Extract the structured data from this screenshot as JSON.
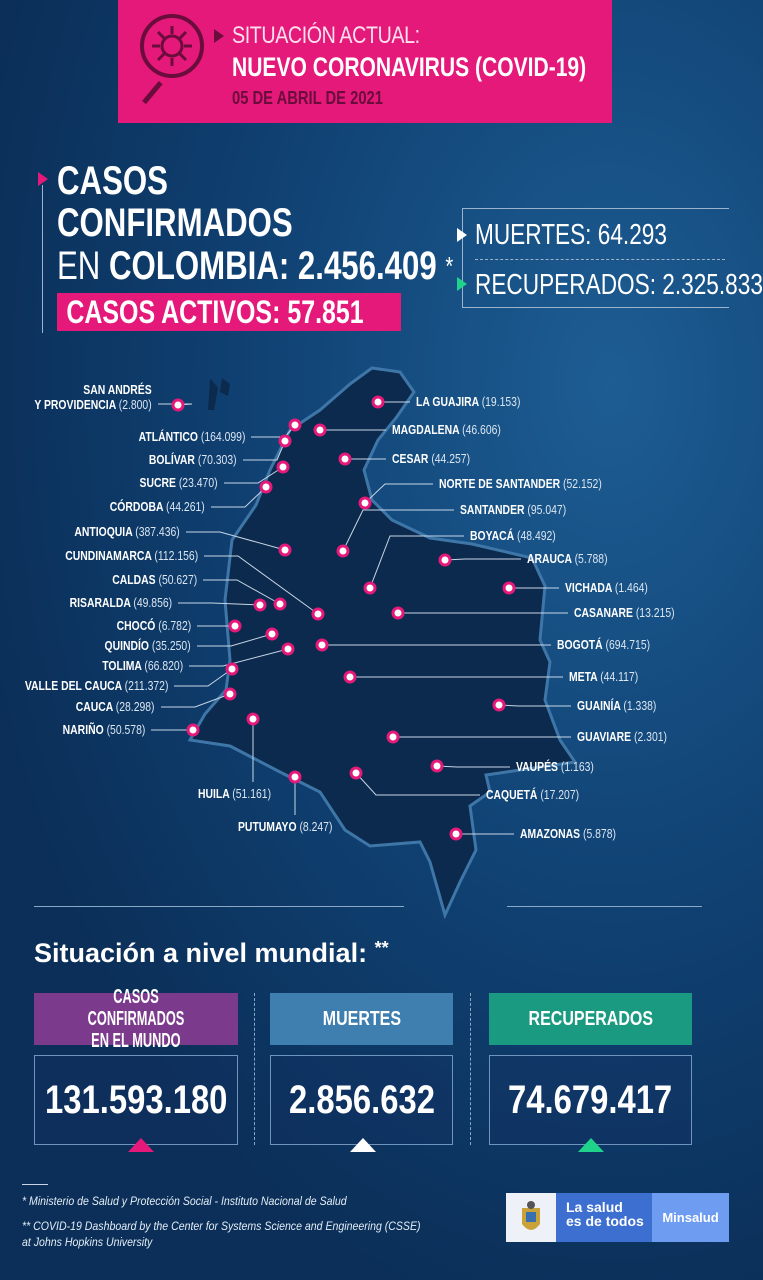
{
  "header": {
    "line1": "SITUACIÓN ACTUAL:",
    "line2": "NUEVO CORONAVIRUS (COVID-19)",
    "date": "05 DE ABRIL DE 2021",
    "icon": "virus-magnifier-icon"
  },
  "colombia": {
    "casos_line1": "CASOS",
    "casos_line2": "CONFIRMADOS",
    "en": "EN ",
    "pais": "COLOMBIA: 2.456.409",
    "asterisk": "*",
    "activos": "CASOS ACTIVOS: 57.851",
    "muertes": "MUERTES: 64.293",
    "recuperados": "RECUPERADOS: 2.325.833"
  },
  "colors": {
    "accent": "#e5197a",
    "purple": "#7b3a8c",
    "blue": "#3f7fb0",
    "green": "#1a9a80"
  },
  "departments_left": [
    {
      "name": "SAN ANDRÉS",
      "name2": "Y PROVIDENCIA",
      "cases": "(2.800)"
    },
    {
      "name": "ATLÁNTICO",
      "cases": "(164.099)"
    },
    {
      "name": "BOLÍVAR",
      "cases": "(70.303)"
    },
    {
      "name": "SUCRE",
      "cases": "(23.470)"
    },
    {
      "name": "CÓRDOBA",
      "cases": "(44.261)"
    },
    {
      "name": "ANTIOQUIA",
      "cases": "(387.436)"
    },
    {
      "name": "CUNDINAMARCA",
      "cases": "(112.156)"
    },
    {
      "name": "CALDAS",
      "cases": "(50.627)"
    },
    {
      "name": "RISARALDA",
      "cases": "(49.856)"
    },
    {
      "name": "CHOCÓ",
      "cases": "(6.782)"
    },
    {
      "name": "QUINDÍO",
      "cases": "(35.250)"
    },
    {
      "name": "TOLIMA",
      "cases": "(66.820)"
    },
    {
      "name": "VALLE DEL CAUCA",
      "cases": "(211.372)"
    },
    {
      "name": "CAUCA",
      "cases": "(28.298)"
    },
    {
      "name": "NARIÑO",
      "cases": "(50.578)"
    },
    {
      "name": "HUILA",
      "cases": "(51.161)"
    },
    {
      "name": "PUTUMAYO",
      "cases": "(8.247)"
    }
  ],
  "departments_right": [
    {
      "name": "LA GUAJIRA",
      "cases": "(19.153)"
    },
    {
      "name": "MAGDALENA",
      "cases": "(46.606)"
    },
    {
      "name": "CESAR",
      "cases": "(44.257)"
    },
    {
      "name": "NORTE DE SANTANDER",
      "cases": "(52.152)"
    },
    {
      "name": "SANTANDER",
      "cases": "(95.047)"
    },
    {
      "name": "BOYACÁ",
      "cases": "(48.492)"
    },
    {
      "name": "ARAUCA",
      "cases": "(5.788)"
    },
    {
      "name": "VICHADA",
      "cases": "(1.464)"
    },
    {
      "name": "CASANARE",
      "cases": "(13.215)"
    },
    {
      "name": "BOGOTÁ",
      "cases": "(694.715)"
    },
    {
      "name": "META",
      "cases": "(44.117)"
    },
    {
      "name": "GUAINÍA",
      "cases": "(1.338)"
    },
    {
      "name": "GUAVIARE",
      "cases": "(2.301)"
    },
    {
      "name": "VAUPÉS",
      "cases": "(1.163)"
    },
    {
      "name": "CAQUETÁ",
      "cases": "(17.207)"
    },
    {
      "name": "AMAZONAS",
      "cases": "(5.878)"
    }
  ],
  "mundial": {
    "title": "Situación a nivel mundial:",
    "asterisk": "**",
    "casos_label1": "CASOS CONFIRMADOS",
    "casos_label2": "EN EL MUNDO",
    "casos": "131.593.180",
    "muertes_label": "MUERTES",
    "muertes": "2.856.632",
    "recuperados_label": "RECUPERADOS",
    "recuperados": "74.679.417"
  },
  "footer": {
    "note1": "* Ministerio de Salud y Protección Social - Instituto Nacional de Salud",
    "note2": "** COVID-19 Dashboard by the Center for Systems Science and Engineering (CSSE)",
    "note3": "at Johns Hopkins University",
    "logo_slogan1": "La salud",
    "logo_slogan2": "es de todos",
    "logo_brand": "Minsalud"
  }
}
